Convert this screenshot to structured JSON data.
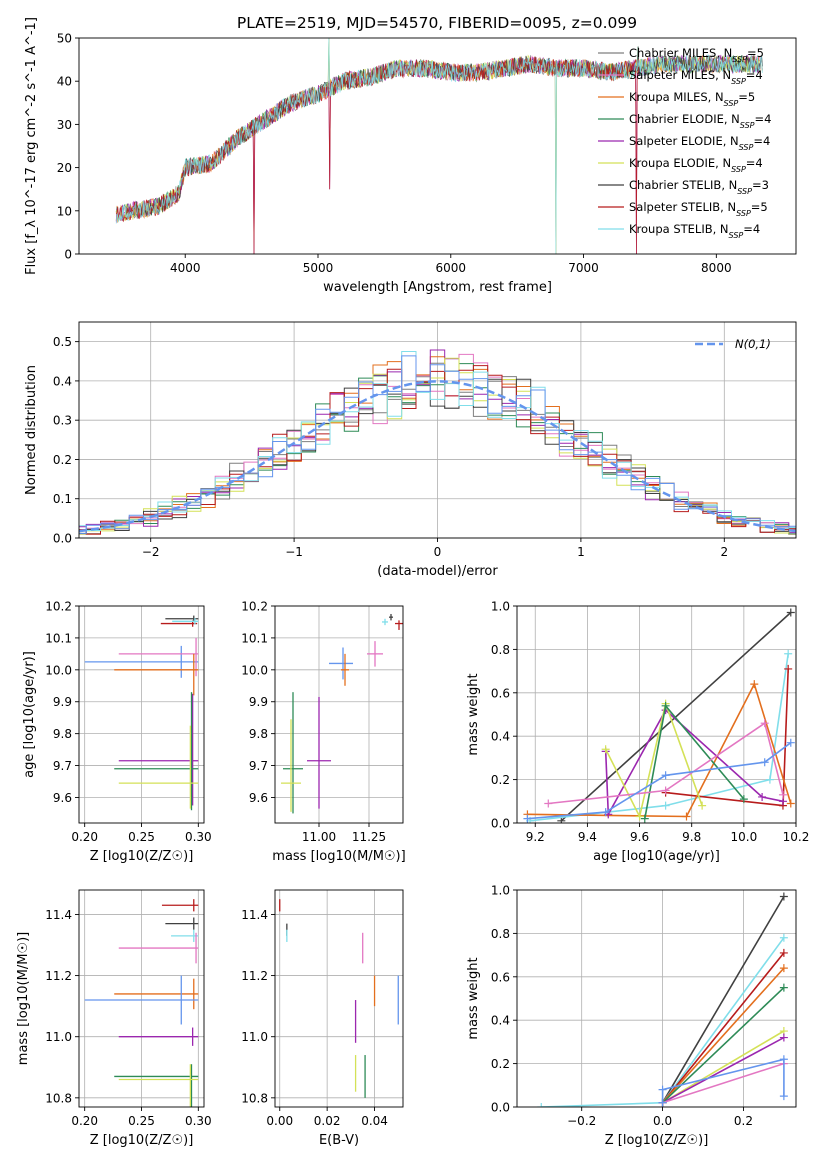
{
  "figure_title": "PLATE=2519, MJD=54570, FIBERID=0095, z=0.099",
  "colors": [
    "#7f7f7f",
    "#e377c2",
    "#e36f1e",
    "#2e8b57",
    "#9b27af",
    "#d4e157",
    "#404040",
    "#b71c1c",
    "#80deea",
    "#6495ed"
  ],
  "models": [
    {
      "name": "Chabrier MILES",
      "nssp": "5",
      "color": "#7f7f7f"
    },
    {
      "name": "Salpeter MILES",
      "nssp": "4",
      "color": "#e377c2"
    },
    {
      "name": "Kroupa MILES",
      "nssp": "5",
      "color": "#e36f1e"
    },
    {
      "name": "Chabrier ELODIE",
      "nssp": "4",
      "color": "#2e8b57"
    },
    {
      "name": "Salpeter ELODIE",
      "nssp": "4",
      "color": "#9b27af"
    },
    {
      "name": "Kroupa ELODIE",
      "nssp": "4",
      "color": "#d4e157"
    },
    {
      "name": "Chabrier STELIB",
      "nssp": "3",
      "color": "#404040"
    },
    {
      "name": "Salpeter STELIB",
      "nssp": "5",
      "color": "#b71c1c"
    },
    {
      "name": "Kroupa STELIB",
      "nssp": "4",
      "color": "#80deea"
    }
  ],
  "chart_data": [
    {
      "id": "spectrum",
      "type": "line",
      "xlabel": "wavelength [Angstrom, rest frame]",
      "ylabel": "Flux [f_λ 10^-17 erg cm^-2 s^-1 A^-1]",
      "xlim": [
        3200,
        8600
      ],
      "ylim": [
        0,
        50
      ],
      "xticks": [
        4000,
        5000,
        6000,
        7000,
        8000
      ],
      "yticks": [
        0,
        10,
        20,
        30,
        40,
        50
      ],
      "continuum": [
        [
          3480,
          9
        ],
        [
          3600,
          10
        ],
        [
          3800,
          11
        ],
        [
          3950,
          14
        ],
        [
          4000,
          20
        ],
        [
          4200,
          21
        ],
        [
          4400,
          27
        ],
        [
          4600,
          31
        ],
        [
          4800,
          35
        ],
        [
          5000,
          37
        ],
        [
          5200,
          40
        ],
        [
          5400,
          41
        ],
        [
          5600,
          43
        ],
        [
          5800,
          43
        ],
        [
          6000,
          42
        ],
        [
          6200,
          42
        ],
        [
          6400,
          43
        ],
        [
          6600,
          44
        ],
        [
          6800,
          43
        ],
        [
          7000,
          43
        ],
        [
          7200,
          42
        ],
        [
          7400,
          43
        ],
        [
          7600,
          44
        ],
        [
          7800,
          44
        ],
        [
          8000,
          44
        ],
        [
          8200,
          44
        ],
        [
          8350,
          44
        ]
      ],
      "spikes": [
        [
          4520,
          0
        ],
        [
          5080,
          50
        ],
        [
          5090,
          15
        ],
        [
          6790,
          0
        ],
        [
          7400,
          0
        ],
        [
          7410,
          48
        ]
      ]
    },
    {
      "id": "residuals",
      "type": "histogram",
      "xlabel": "(data-model)/error",
      "ylabel": "Normed distribution",
      "xlim": [
        -2.5,
        2.5
      ],
      "ylim": [
        0,
        0.55
      ],
      "xticks": [
        -2,
        -1,
        0,
        1,
        2
      ],
      "yticks": [
        0.0,
        0.1,
        0.2,
        0.3,
        0.4,
        0.5
      ],
      "reference_label": "N(0,1)",
      "reference_color": "#6495ed"
    },
    {
      "id": "age_vs_Z",
      "type": "errorbar",
      "xlabel": "Z [log10(Z/Z☉)]",
      "ylabel": "age [log10(age/yr)]",
      "xlim": [
        0.195,
        0.305
      ],
      "ylim": [
        9.52,
        10.2
      ],
      "xticks": [
        0.2,
        0.25,
        0.3
      ],
      "yticks": [
        9.6,
        9.7,
        9.8,
        9.9,
        10.0,
        10.1,
        10.2
      ],
      "points": [
        {
          "x": 0.296,
          "y": 10.16,
          "xerr": [
            0.025,
            0.004
          ],
          "yerr": [
            0.01,
            0.01
          ],
          "color": "#404040"
        },
        {
          "x": 0.295,
          "y": 10.145,
          "xerr": [
            0.028,
            0.004
          ],
          "yerr": [
            0.01,
            0.01
          ],
          "color": "#b71c1c"
        },
        {
          "x": 0.297,
          "y": 10.152,
          "xerr": [
            0.02,
            0.003
          ],
          "yerr": [
            0.01,
            0.01
          ],
          "color": "#80deea"
        },
        {
          "x": 0.285,
          "y": 10.025,
          "xerr": [
            0.085,
            0.015
          ],
          "yerr": [
            0.05,
            0.05
          ],
          "color": "#6495ed"
        },
        {
          "x": 0.298,
          "y": 10.05,
          "xerr": [
            0.068,
            0.002
          ],
          "yerr": [
            0.07,
            0.05
          ],
          "color": "#e377c2"
        },
        {
          "x": 0.296,
          "y": 10.0,
          "xerr": [
            0.07,
            0.004
          ],
          "yerr": [
            0.08,
            0.05
          ],
          "color": "#e36f1e"
        },
        {
          "x": 0.295,
          "y": 9.715,
          "xerr": [
            0.065,
            0.005
          ],
          "yerr": [
            0.14,
            0.21
          ],
          "color": "#9b27af"
        },
        {
          "x": 0.294,
          "y": 9.69,
          "xerr": [
            0.068,
            0.006
          ],
          "yerr": [
            0.13,
            0.24
          ],
          "color": "#2e8b57"
        },
        {
          "x": 0.293,
          "y": 9.645,
          "xerr": [
            0.063,
            0.007
          ],
          "yerr": [
            0.08,
            0.18
          ],
          "color": "#d4e157"
        }
      ]
    },
    {
      "id": "age_vs_mass",
      "type": "errorbar",
      "xlabel": "mass [log10(M/M☉)]",
      "ylabel": "",
      "xlim": [
        10.78,
        11.42
      ],
      "ylim": [
        9.52,
        10.2
      ],
      "xticks": [
        11.0,
        11.25
      ],
      "yticks": [
        9.6,
        9.7,
        9.8,
        9.9,
        10.0,
        10.1,
        10.2
      ],
      "points": [
        {
          "x": 11.33,
          "y": 10.15,
          "xerr": [
            0.015,
            0.015
          ],
          "yerr": [
            0.01,
            0.01
          ],
          "color": "#80deea"
        },
        {
          "x": 11.36,
          "y": 10.165,
          "xerr": [
            0.01,
            0.01
          ],
          "yerr": [
            0.01,
            0.01
          ],
          "color": "#404040"
        },
        {
          "x": 11.4,
          "y": 10.145,
          "xerr": [
            0.02,
            0.02
          ],
          "yerr": [
            0.02,
            0.01
          ],
          "color": "#b71c1c"
        },
        {
          "x": 11.28,
          "y": 10.05,
          "xerr": [
            0.04,
            0.04
          ],
          "yerr": [
            0.04,
            0.04
          ],
          "color": "#e377c2"
        },
        {
          "x": 11.12,
          "y": 10.02,
          "xerr": [
            0.07,
            0.05
          ],
          "yerr": [
            0.05,
            0.05
          ],
          "color": "#6495ed"
        },
        {
          "x": 11.13,
          "y": 10.0,
          "xerr": [
            0.02,
            0.02
          ],
          "yerr": [
            0.05,
            0.05
          ],
          "color": "#e36f1e"
        },
        {
          "x": 11.0,
          "y": 9.715,
          "xerr": [
            0.06,
            0.06
          ],
          "yerr": [
            0.15,
            0.2
          ],
          "color": "#9b27af"
        },
        {
          "x": 10.87,
          "y": 9.69,
          "xerr": [
            0.05,
            0.05
          ],
          "yerr": [
            0.14,
            0.24
          ],
          "color": "#2e8b57"
        },
        {
          "x": 10.86,
          "y": 9.645,
          "xerr": [
            0.05,
            0.05
          ],
          "yerr": [
            0.09,
            0.2
          ],
          "color": "#d4e157"
        }
      ]
    },
    {
      "id": "weight_vs_age",
      "type": "line",
      "xlabel": "age [log10(age/yr)]",
      "ylabel": "mass weight",
      "xlim": [
        9.13,
        10.2
      ],
      "ylim": [
        0,
        1.0
      ],
      "xticks": [
        9.2,
        9.4,
        9.6,
        9.8,
        10.0,
        10.2
      ],
      "yticks": [
        0.0,
        0.2,
        0.4,
        0.6,
        0.8,
        1.0
      ],
      "series": [
        {
          "color": "#404040",
          "x": [
            9.3,
            10.18
          ],
          "y": [
            0.01,
            0.97
          ]
        },
        {
          "color": "#80deea",
          "x": [
            9.18,
            9.7,
            10.1,
            10.17
          ],
          "y": [
            0.01,
            0.08,
            0.2,
            0.78
          ]
        },
        {
          "color": "#b71c1c",
          "x": [
            9.7,
            10.15,
            10.17
          ],
          "y": [
            0.14,
            0.08,
            0.71
          ]
        },
        {
          "color": "#e36f1e",
          "x": [
            9.17,
            9.78,
            10.04,
            10.18
          ],
          "y": [
            0.04,
            0.03,
            0.64,
            0.09
          ]
        },
        {
          "color": "#9b27af",
          "x": [
            9.47,
            9.48,
            9.7,
            10.07,
            10.15
          ],
          "y": [
            0.33,
            0.04,
            0.52,
            0.12,
            0.1
          ]
        },
        {
          "color": "#d4e157",
          "x": [
            9.47,
            9.6,
            9.7,
            9.84
          ],
          "y": [
            0.34,
            0.03,
            0.55,
            0.08
          ]
        },
        {
          "color": "#2e8b57",
          "x": [
            9.62,
            9.7,
            10.0
          ],
          "y": [
            0.02,
            0.54,
            0.11
          ]
        },
        {
          "color": "#e377c2",
          "x": [
            9.25,
            9.7,
            10.08,
            10.15
          ],
          "y": [
            0.09,
            0.15,
            0.46,
            0.13
          ]
        },
        {
          "color": "#6495ed",
          "x": [
            9.17,
            9.47,
            9.7,
            10.08,
            10.18
          ],
          "y": [
            0.02,
            0.05,
            0.22,
            0.28,
            0.37
          ]
        }
      ]
    },
    {
      "id": "mass_vs_Z",
      "type": "errorbar",
      "xlabel": "Z [log10(Z/Z☉)]",
      "ylabel": "mass [log10(M/M☉)]",
      "xlim": [
        0.195,
        0.305
      ],
      "ylim": [
        10.77,
        11.48
      ],
      "xticks": [
        0.2,
        0.25,
        0.3
      ],
      "yticks": [
        10.8,
        11.0,
        11.2,
        11.4
      ],
      "points": [
        {
          "x": 0.296,
          "y": 11.43,
          "xerr": [
            0.028,
            0.004
          ],
          "yerr": [
            0.02,
            0.02
          ],
          "color": "#b71c1c"
        },
        {
          "x": 0.296,
          "y": 11.37,
          "xerr": [
            0.025,
            0.004
          ],
          "yerr": [
            0.02,
            0.02
          ],
          "color": "#404040"
        },
        {
          "x": 0.296,
          "y": 11.33,
          "xerr": [
            0.02,
            0.004
          ],
          "yerr": [
            0.02,
            0.02
          ],
          "color": "#80deea"
        },
        {
          "x": 0.298,
          "y": 11.29,
          "xerr": [
            0.068,
            0.002
          ],
          "yerr": [
            0.05,
            0.05
          ],
          "color": "#e377c2"
        },
        {
          "x": 0.296,
          "y": 11.14,
          "xerr": [
            0.07,
            0.004
          ],
          "yerr": [
            0.05,
            0.05
          ],
          "color": "#e36f1e"
        },
        {
          "x": 0.285,
          "y": 11.12,
          "xerr": [
            0.085,
            0.015
          ],
          "yerr": [
            0.08,
            0.08
          ],
          "color": "#6495ed"
        },
        {
          "x": 0.295,
          "y": 11.0,
          "xerr": [
            0.065,
            0.005
          ],
          "yerr": [
            0.03,
            0.03
          ],
          "color": "#9b27af"
        },
        {
          "x": 0.294,
          "y": 10.87,
          "xerr": [
            0.068,
            0.006
          ],
          "yerr": [
            0.1,
            0.04
          ],
          "color": "#2e8b57"
        },
        {
          "x": 0.293,
          "y": 10.86,
          "xerr": [
            0.063,
            0.007
          ],
          "yerr": [
            0.1,
            0.05
          ],
          "color": "#d4e157"
        }
      ]
    },
    {
      "id": "mass_vs_ebv",
      "type": "errorbar",
      "xlabel": "E(B-V)",
      "ylabel": "",
      "xlim": [
        -0.002,
        0.052
      ],
      "ylim": [
        10.77,
        11.48
      ],
      "xticks": [
        0.0,
        0.02,
        0.04
      ],
      "yticks": [
        10.8,
        11.0,
        11.2,
        11.4
      ],
      "points": [
        {
          "x": 0.0,
          "y": 11.43,
          "xerr": [
            0,
            0
          ],
          "yerr": [
            0.02,
            0.02
          ],
          "color": "#b71c1c"
        },
        {
          "x": 0.003,
          "y": 11.35,
          "xerr": [
            0,
            0
          ],
          "yerr": [
            0.02,
            0.02
          ],
          "color": "#404040"
        },
        {
          "x": 0.003,
          "y": 11.33,
          "xerr": [
            0,
            0
          ],
          "yerr": [
            0.02,
            0.02
          ],
          "color": "#80deea"
        },
        {
          "x": 0.035,
          "y": 11.29,
          "xerr": [
            0,
            0
          ],
          "yerr": [
            0.05,
            0.05
          ],
          "color": "#e377c2"
        },
        {
          "x": 0.04,
          "y": 11.15,
          "xerr": [
            0,
            0
          ],
          "yerr": [
            0.05,
            0.05
          ],
          "color": "#e36f1e"
        },
        {
          "x": 0.05,
          "y": 11.12,
          "xerr": [
            0,
            0
          ],
          "yerr": [
            0.08,
            0.08
          ],
          "color": "#6495ed"
        },
        {
          "x": 0.032,
          "y": 11.05,
          "xerr": [
            0,
            0
          ],
          "yerr": [
            0.07,
            0.07
          ],
          "color": "#9b27af"
        },
        {
          "x": 0.036,
          "y": 10.87,
          "xerr": [
            0,
            0
          ],
          "yerr": [
            0.07,
            0.07
          ],
          "color": "#2e8b57"
        },
        {
          "x": 0.032,
          "y": 10.88,
          "xerr": [
            0,
            0
          ],
          "yerr": [
            0.06,
            0.06
          ],
          "color": "#d4e157"
        }
      ]
    },
    {
      "id": "weight_vs_Z",
      "type": "line",
      "xlabel": "Z [log10(Z/Z☉)]",
      "ylabel": "mass weight",
      "xlim": [
        -0.36,
        0.33
      ],
      "ylim": [
        0,
        1.0
      ],
      "xticks": [
        -0.2,
        0.0,
        0.2
      ],
      "yticks": [
        0.0,
        0.2,
        0.4,
        0.6,
        0.8,
        1.0
      ],
      "series": [
        {
          "color": "#404040",
          "x": [
            0.0,
            0.3
          ],
          "y": [
            0.02,
            0.97
          ]
        },
        {
          "color": "#80deea",
          "x": [
            -0.3,
            0.0,
            0.3
          ],
          "y": [
            0.0,
            0.02,
            0.78
          ]
        },
        {
          "color": "#b71c1c",
          "x": [
            0.0,
            0.3
          ],
          "y": [
            0.02,
            0.71
          ]
        },
        {
          "color": "#e36f1e",
          "x": [
            0.0,
            0.3
          ],
          "y": [
            0.02,
            0.64
          ]
        },
        {
          "color": "#d4e157",
          "x": [
            0.0,
            0.3
          ],
          "y": [
            0.02,
            0.35
          ]
        },
        {
          "color": "#9b27af",
          "x": [
            0.0,
            0.3
          ],
          "y": [
            0.02,
            0.32
          ]
        },
        {
          "color": "#2e8b57",
          "x": [
            0.0,
            0.3
          ],
          "y": [
            0.02,
            0.55
          ]
        },
        {
          "color": "#e377c2",
          "x": [
            0.0,
            0.3
          ],
          "y": [
            0.02,
            0.2
          ]
        },
        {
          "color": "#6495ed",
          "x": [
            0.0,
            0.0,
            0.3,
            0.3
          ],
          "y": [
            0.02,
            0.08,
            0.22,
            0.05
          ]
        }
      ]
    }
  ]
}
